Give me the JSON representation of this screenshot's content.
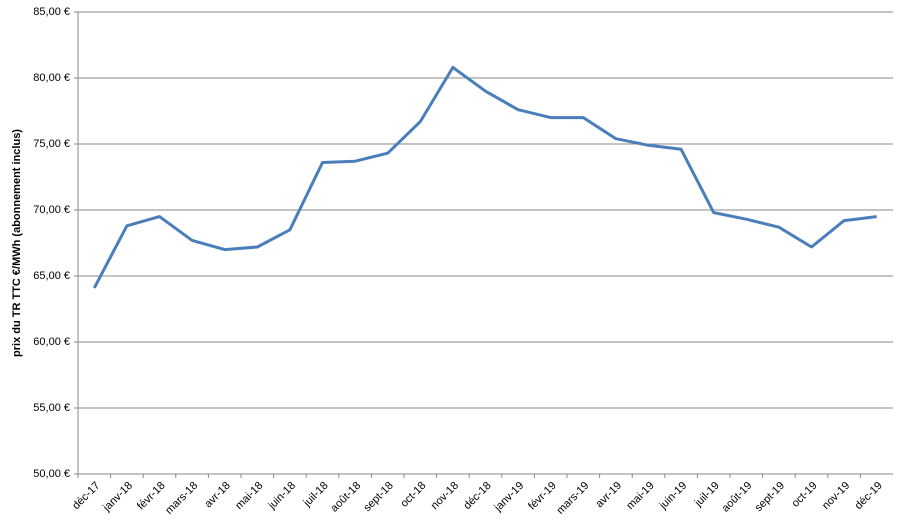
{
  "chart_data": {
    "type": "line",
    "y_label": "prix du TR TTC €/MWh (abonnement inclus)",
    "categories": [
      "déc-17",
      "janv-18",
      "févr-18",
      "mars-18",
      "avr-18",
      "mai-18",
      "juin-18",
      "juil-18",
      "août-18",
      "sept-18",
      "oct-18",
      "nov-18",
      "déc-18",
      "janv-19",
      "févr-19",
      "mars-19",
      "avr-19",
      "mai-19",
      "juin-19",
      "juil-19",
      "août-19",
      "sept-19",
      "oct-19",
      "nov-19",
      "déc-19"
    ],
    "values": [
      64.1,
      68.8,
      69.5,
      67.7,
      67.0,
      67.2,
      68.5,
      73.6,
      73.7,
      74.3,
      76.7,
      80.8,
      79.0,
      77.6,
      77.0,
      77.0,
      75.4,
      74.9,
      74.6,
      69.8,
      69.3,
      68.7,
      67.2,
      69.2,
      69.5
    ],
    "color": "#4a7ebb",
    "ylim": [
      50,
      85
    ],
    "yticks": [
      {
        "value": 50,
        "label": "50,00 €"
      },
      {
        "value": 55,
        "label": "55,00 €"
      },
      {
        "value": 60,
        "label": "60,00 €"
      },
      {
        "value": 65,
        "label": "65,00 €"
      },
      {
        "value": 70,
        "label": "70,00 €"
      },
      {
        "value": 75,
        "label": "75,00 €"
      },
      {
        "value": 80,
        "label": "80,00 €"
      },
      {
        "value": 85,
        "label": "85,00 €"
      }
    ],
    "grid": true
  }
}
